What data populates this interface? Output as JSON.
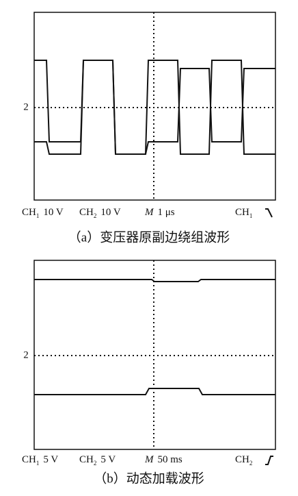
{
  "panels": [
    {
      "marker": "2",
      "labels": [
        {
          "name": "CH",
          "sub": "1",
          "value": "10 V"
        },
        {
          "name": "CH",
          "sub": "2",
          "value": "10 V"
        },
        {
          "name": "M",
          "value": "1 μs"
        },
        {
          "name": "CH",
          "sub": "1"
        }
      ],
      "caption": "（a）变压器原副边绕组波形"
    },
    {
      "marker": "2",
      "labels": [
        {
          "name": "CH",
          "sub": "1",
          "value": "5 V"
        },
        {
          "name": "CH",
          "sub": "2",
          "value": "5 V"
        },
        {
          "name": "M",
          "value": "50 ms"
        },
        {
          "name": "CH",
          "sub": "2"
        }
      ],
      "caption": "（b）动态加载波形"
    }
  ]
}
